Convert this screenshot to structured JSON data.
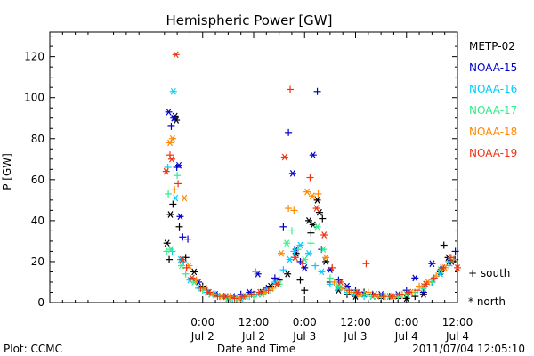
{
  "chart_data": {
    "type": "scatter",
    "title": "Hemispheric Power [GW]",
    "xlabel": "Date and Time",
    "ylabel": "P [GW]",
    "ylim": [
      0,
      132
    ],
    "xlim": [
      -36,
      60
    ],
    "x_units": "hours from 2011-07-02 00:00 UT",
    "y_ticks": [
      0,
      20,
      40,
      60,
      80,
      100,
      120
    ],
    "x_ticks": [
      {
        "x": 0,
        "time": "0:00",
        "date": "Jul 2"
      },
      {
        "x": 12,
        "time": "12:00",
        "date": "Jul 2"
      },
      {
        "x": 24,
        "time": "0:00",
        "date": "Jul 3"
      },
      {
        "x": 36,
        "time": "12:00",
        "date": "Jul 3"
      },
      {
        "x": 48,
        "time": "0:00",
        "date": "Jul 4"
      },
      {
        "x": 60,
        "time": "12:00",
        "date": "Jul 4"
      }
    ],
    "legend_placement": "right",
    "marker_legend": {
      "south": "+ south",
      "north": "* north"
    },
    "footer_left": "Plot: CCMC",
    "footer_right": "2011/07/04 12:05:10",
    "series": [
      {
        "name": "METP-02",
        "color": "#000000",
        "points": [
          [
            -8.4,
            29,
            "N"
          ],
          [
            -7.9,
            21,
            "S"
          ],
          [
            -7.6,
            43,
            "N"
          ],
          [
            -7,
            48,
            "S"
          ],
          [
            -6.5,
            91,
            "N"
          ],
          [
            -6.2,
            89,
            "N"
          ],
          [
            -5.5,
            37,
            "S"
          ],
          [
            -4,
            22,
            "S"
          ],
          [
            -2,
            15,
            "N"
          ],
          [
            0,
            8,
            "S"
          ],
          [
            2,
            4,
            "N"
          ],
          [
            4,
            3,
            "S"
          ],
          [
            6,
            2,
            "N"
          ],
          [
            8,
            2,
            "S"
          ],
          [
            10,
            3,
            "N"
          ],
          [
            12,
            4,
            "S"
          ],
          [
            14,
            5,
            "N"
          ],
          [
            16,
            8,
            "N"
          ],
          [
            18,
            11,
            "S"
          ],
          [
            20,
            14,
            "N"
          ],
          [
            22,
            24,
            "N"
          ],
          [
            23,
            11,
            "S"
          ],
          [
            24,
            6,
            "S"
          ],
          [
            25,
            40,
            "N"
          ],
          [
            25.5,
            34,
            "S"
          ],
          [
            26,
            38,
            "N"
          ],
          [
            27,
            50,
            "N"
          ],
          [
            27.5,
            44,
            "N"
          ],
          [
            28.2,
            41,
            "S"
          ],
          [
            29,
            20,
            "N"
          ],
          [
            30,
            10,
            "S"
          ],
          [
            32,
            6,
            "N"
          ],
          [
            34,
            4,
            "S"
          ],
          [
            36,
            3,
            "N"
          ],
          [
            38,
            5,
            "S"
          ],
          [
            40,
            3,
            "N"
          ],
          [
            42,
            2,
            "S"
          ],
          [
            44,
            3,
            "N"
          ],
          [
            46,
            2,
            "S"
          ],
          [
            48,
            2,
            "N"
          ],
          [
            50,
            3,
            "S"
          ],
          [
            52,
            4,
            "N"
          ],
          [
            54,
            10,
            "S"
          ],
          [
            56,
            15,
            "N"
          ],
          [
            56.8,
            28,
            "S"
          ],
          [
            57.8,
            22,
            "N"
          ],
          [
            58.6,
            20,
            "N"
          ],
          [
            59.4,
            21,
            "S"
          ]
        ]
      },
      {
        "name": "NOAA-15",
        "color": "#0000cc",
        "points": [
          [
            -8,
            93,
            "N"
          ],
          [
            -7.4,
            86,
            "S"
          ],
          [
            -6.8,
            90,
            "N"
          ],
          [
            -6.1,
            66,
            "S"
          ],
          [
            -5.6,
            67,
            "N"
          ],
          [
            -5.3,
            42,
            "N"
          ],
          [
            -4.7,
            32,
            "S"
          ],
          [
            -3.5,
            31,
            "S"
          ],
          [
            -1,
            10,
            "N"
          ],
          [
            1,
            6,
            "S"
          ],
          [
            3,
            4,
            "N"
          ],
          [
            5,
            3,
            "S"
          ],
          [
            7,
            3,
            "N"
          ],
          [
            9,
            4,
            "S"
          ],
          [
            11,
            5,
            "N"
          ],
          [
            13,
            14,
            "N"
          ],
          [
            15,
            7,
            "S"
          ],
          [
            17,
            12,
            "S"
          ],
          [
            19,
            37,
            "S"
          ],
          [
            20.2,
            83,
            "S"
          ],
          [
            21.2,
            63,
            "N"
          ],
          [
            22,
            26,
            "N"
          ],
          [
            23,
            20,
            "S"
          ],
          [
            24,
            17,
            "N"
          ],
          [
            26,
            72,
            "N"
          ],
          [
            27,
            103,
            "S"
          ],
          [
            28,
            26,
            "S"
          ],
          [
            30,
            16,
            "N"
          ],
          [
            32,
            11,
            "S"
          ],
          [
            34,
            8,
            "N"
          ],
          [
            36,
            6,
            "S"
          ],
          [
            38,
            4,
            "N"
          ],
          [
            40,
            4,
            "S"
          ],
          [
            42,
            4,
            "N"
          ],
          [
            44,
            3,
            "S"
          ],
          [
            46,
            4,
            "N"
          ],
          [
            48,
            6,
            "S"
          ],
          [
            50,
            12,
            "N"
          ],
          [
            52,
            5,
            "S"
          ],
          [
            54,
            19,
            "N"
          ],
          [
            56,
            16,
            "S"
          ],
          [
            58,
            20,
            "N"
          ],
          [
            59.5,
            25,
            "S"
          ]
        ]
      },
      {
        "name": "NOAA-16",
        "color": "#00ccff",
        "points": [
          [
            -8.2,
            66,
            "S"
          ],
          [
            -7.2,
            25,
            "S"
          ],
          [
            -6.9,
            103,
            "N"
          ],
          [
            -6.4,
            51,
            "N"
          ],
          [
            -5.2,
            21,
            "N"
          ],
          [
            -4.5,
            20,
            "S"
          ],
          [
            -3,
            11,
            "N"
          ],
          [
            -1,
            7,
            "S"
          ],
          [
            1,
            5,
            "N"
          ],
          [
            3,
            4,
            "S"
          ],
          [
            5,
            3,
            "N"
          ],
          [
            7,
            2,
            "S"
          ],
          [
            9,
            2,
            "N"
          ],
          [
            11,
            3,
            "S"
          ],
          [
            13,
            4,
            "N"
          ],
          [
            15,
            6,
            "S"
          ],
          [
            17,
            10,
            "N"
          ],
          [
            19,
            16,
            "S"
          ],
          [
            20.5,
            21,
            "N"
          ],
          [
            21.5,
            25,
            "S"
          ],
          [
            23,
            28,
            "N"
          ],
          [
            25,
            24,
            "N"
          ],
          [
            26.5,
            18,
            "S"
          ],
          [
            28,
            15,
            "N"
          ],
          [
            30,
            9,
            "S"
          ],
          [
            32,
            7,
            "N"
          ],
          [
            34,
            5,
            "S"
          ],
          [
            36,
            4,
            "N"
          ],
          [
            38,
            3,
            "S"
          ],
          [
            40,
            3,
            "N"
          ],
          [
            42,
            3,
            "S"
          ],
          [
            44,
            3,
            "N"
          ],
          [
            46,
            3,
            "S"
          ],
          [
            48,
            4,
            "N"
          ],
          [
            50,
            5,
            "S"
          ],
          [
            52,
            8,
            "N"
          ],
          [
            54,
            10,
            "S"
          ],
          [
            56,
            14,
            "N"
          ],
          [
            58,
            18,
            "S"
          ]
        ]
      },
      {
        "name": "NOAA-17",
        "color": "#33ee88",
        "points": [
          [
            -8.5,
            25,
            "S"
          ],
          [
            -8.1,
            53,
            "S"
          ],
          [
            -7.5,
            26,
            "N"
          ],
          [
            -6,
            62,
            "S"
          ],
          [
            -5,
            18,
            "N"
          ],
          [
            -4,
            14,
            "S"
          ],
          [
            -2,
            10,
            "N"
          ],
          [
            0,
            6,
            "S"
          ],
          [
            2,
            4,
            "N"
          ],
          [
            4,
            3,
            "S"
          ],
          [
            6,
            2,
            "N"
          ],
          [
            8,
            2,
            "S"
          ],
          [
            10,
            3,
            "N"
          ],
          [
            12,
            3,
            "S"
          ],
          [
            14,
            4,
            "N"
          ],
          [
            16,
            6,
            "S"
          ],
          [
            18,
            9,
            "N"
          ],
          [
            19.8,
            29,
            "N"
          ],
          [
            21,
            35,
            "S"
          ],
          [
            22.4,
            26,
            "S"
          ],
          [
            24,
            21,
            "N"
          ],
          [
            25.5,
            29,
            "S"
          ],
          [
            27,
            37,
            "N"
          ],
          [
            28.4,
            26,
            "N"
          ],
          [
            30,
            12,
            "S"
          ],
          [
            32,
            8,
            "N"
          ],
          [
            34,
            6,
            "S"
          ],
          [
            36,
            5,
            "N"
          ],
          [
            38,
            4,
            "S"
          ],
          [
            40,
            3,
            "N"
          ],
          [
            42,
            3,
            "S"
          ],
          [
            44,
            3,
            "N"
          ],
          [
            46,
            3,
            "S"
          ],
          [
            48,
            4,
            "N"
          ],
          [
            50,
            5,
            "S"
          ],
          [
            52,
            7,
            "N"
          ],
          [
            54,
            11,
            "S"
          ],
          [
            56,
            16,
            "N"
          ],
          [
            58,
            20,
            "S"
          ]
        ]
      },
      {
        "name": "NOAA-18",
        "color": "#ff8800",
        "points": [
          [
            -7.7,
            78,
            "N"
          ],
          [
            -7.1,
            80,
            "N"
          ],
          [
            -6.6,
            55,
            "S"
          ],
          [
            -4.3,
            51,
            "N"
          ],
          [
            -3.2,
            18,
            "N"
          ],
          [
            -1.5,
            11,
            "S"
          ],
          [
            0.5,
            7,
            "N"
          ],
          [
            2.5,
            4,
            "S"
          ],
          [
            4.5,
            3,
            "N"
          ],
          [
            6.5,
            3,
            "S"
          ],
          [
            8.5,
            2,
            "N"
          ],
          [
            10.5,
            3,
            "S"
          ],
          [
            12.5,
            15,
            "S"
          ],
          [
            14.5,
            5,
            "N"
          ],
          [
            16.5,
            7,
            "S"
          ],
          [
            18.5,
            24,
            "N"
          ],
          [
            20.2,
            46,
            "S"
          ],
          [
            21.5,
            45,
            "S"
          ],
          [
            24.6,
            54,
            "N"
          ],
          [
            25.8,
            52,
            "N"
          ],
          [
            27.2,
            53,
            "S"
          ],
          [
            29,
            22,
            "N"
          ],
          [
            31,
            10,
            "S"
          ],
          [
            33,
            7,
            "N"
          ],
          [
            35,
            5,
            "S"
          ],
          [
            37,
            4,
            "N"
          ],
          [
            39,
            5,
            "S"
          ],
          [
            41,
            3,
            "N"
          ],
          [
            43,
            3,
            "S"
          ],
          [
            45,
            3,
            "N"
          ],
          [
            47,
            4,
            "S"
          ],
          [
            49,
            5,
            "N"
          ],
          [
            51,
            8,
            "S"
          ],
          [
            53,
            10,
            "N"
          ],
          [
            55,
            13,
            "S"
          ],
          [
            57,
            17,
            "N"
          ],
          [
            59,
            21,
            "S"
          ]
        ]
      },
      {
        "name": "NOAA-19",
        "color": "#ee3311",
        "points": [
          [
            -8.6,
            64,
            "N"
          ],
          [
            -7.7,
            72,
            "S"
          ],
          [
            -7.3,
            70,
            "N"
          ],
          [
            -6.3,
            121,
            "N"
          ],
          [
            -5.8,
            58,
            "S"
          ],
          [
            -4.8,
            21,
            "N"
          ],
          [
            -3.8,
            17,
            "S"
          ],
          [
            -2.5,
            12,
            "N"
          ],
          [
            -0.5,
            7,
            "S"
          ],
          [
            1.5,
            5,
            "N"
          ],
          [
            3.5,
            3,
            "S"
          ],
          [
            5.5,
            3,
            "N"
          ],
          [
            7.5,
            2,
            "S"
          ],
          [
            9.5,
            3,
            "N"
          ],
          [
            11.5,
            4,
            "S"
          ],
          [
            13.5,
            5,
            "N"
          ],
          [
            15.5,
            6,
            "S"
          ],
          [
            17.5,
            9,
            "N"
          ],
          [
            19.3,
            71,
            "N"
          ],
          [
            20.6,
            104,
            "S"
          ],
          [
            21.8,
            22,
            "N"
          ],
          [
            23.5,
            19,
            "S"
          ],
          [
            25.3,
            61,
            "S"
          ],
          [
            26.8,
            46,
            "N"
          ],
          [
            28.6,
            33,
            "N"
          ],
          [
            30.5,
            17,
            "S"
          ],
          [
            32.5,
            10,
            "N"
          ],
          [
            34.5,
            6,
            "S"
          ],
          [
            36.5,
            5,
            "N"
          ],
          [
            38.5,
            19,
            "S"
          ],
          [
            40.5,
            4,
            "N"
          ],
          [
            42.5,
            3,
            "S"
          ],
          [
            44.5,
            3,
            "N"
          ],
          [
            46.5,
            4,
            "S"
          ],
          [
            48.5,
            5,
            "N"
          ],
          [
            50.5,
            6,
            "S"
          ],
          [
            52.5,
            9,
            "N"
          ],
          [
            54.5,
            12,
            "S"
          ],
          [
            56.5,
            17,
            "N"
          ],
          [
            58.5,
            22,
            "S"
          ],
          [
            60,
            17,
            "N"
          ]
        ]
      }
    ]
  }
}
